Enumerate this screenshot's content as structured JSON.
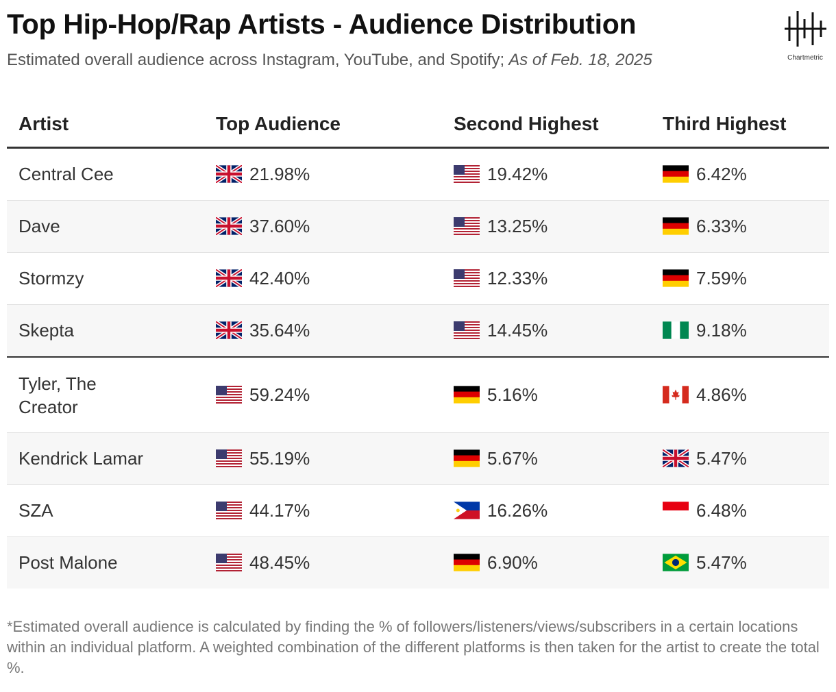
{
  "header": {
    "title": "Top Hip-Hop/Rap Artists - Audience Distribution",
    "subtitle": "Estimated overall audience across Instagram, YouTube, and Spotify;",
    "subtitle_date": "As of Feb. 18, 2025",
    "logo": "Chartmetric"
  },
  "table": {
    "columns": [
      "Artist",
      "Top Audience",
      "Second Highest",
      "Third Highest"
    ],
    "rows": [
      [
        "Central Cee",
        "21.98%",
        "19.42%",
        "6.42%"
      ],
      [
        "Dave",
        "37.60%",
        "13.25%",
        "6.33%"
      ],
      [
        "Stormzy",
        "42.40%",
        "12.33%",
        "7.59%"
      ],
      [
        "Skepta",
        "35.64%",
        "14.45%",
        "9.18%"
      ],
      [
        "Tyler, The Creator",
        "59.24%",
        "5.16%",
        "4.86%"
      ],
      [
        "Kendrick Lamar",
        "55.19%",
        "5.67%",
        "5.47%"
      ],
      [
        "SZA",
        "44.17%",
        "16.26%",
        "6.48%"
      ],
      [
        "Post Malone",
        "48.45%",
        "6.90%",
        "5.47%"
      ]
    ]
  },
  "footnote": "*Estimated overall audience is calculated by finding the % of followers/listeners/views/subscribers in a certain locations within an individual platform. A weighted combination of the different platforms is then taken for the artist to create the total %."
}
